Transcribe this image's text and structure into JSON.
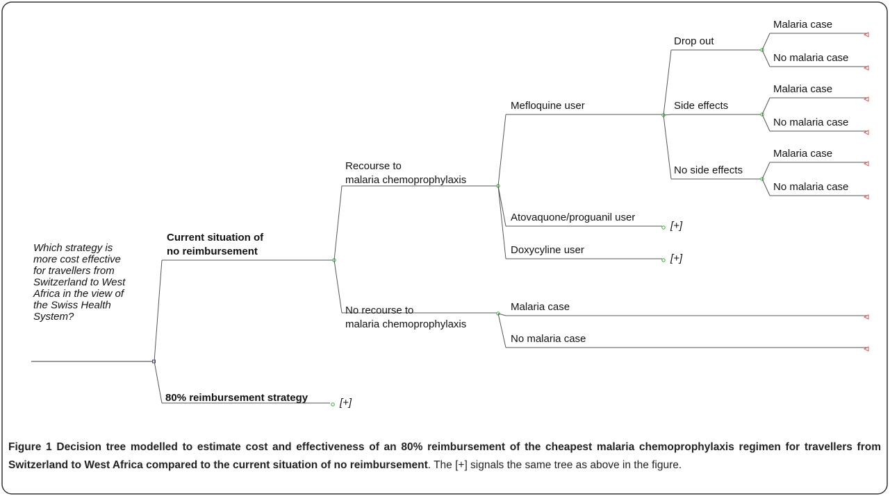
{
  "question": [
    "Which strategy is",
    "more cost effective",
    "for travellers from",
    "Switzerland to West",
    "Africa in the view of",
    "the Swiss Health",
    "System?"
  ],
  "current": [
    "Current situation of",
    "no reimbursement"
  ],
  "reimbursement": {
    "label": "80% reimbursement strategy",
    "collapsed": "[+]"
  },
  "recourse": [
    "Recourse to",
    "malaria chemoprophylaxis"
  ],
  "no_recourse": [
    "No recourse to",
    "malaria chemoprophylaxis"
  ],
  "users": [
    {
      "label": "Mefloquine user"
    },
    {
      "label": "Atovaquone/proguanil user",
      "collapsed": "[+]"
    },
    {
      "label": "Doxycyline user",
      "collapsed": "[+]"
    }
  ],
  "mefloquine_branches": [
    {
      "label": "Drop out",
      "outcomes": [
        "Malaria case",
        "No malaria case"
      ]
    },
    {
      "label": "Side effects",
      "outcomes": [
        "Malaria case",
        "No malaria case"
      ]
    },
    {
      "label": "No side effects",
      "outcomes": [
        "Malaria case",
        "No malaria case"
      ]
    }
  ],
  "no_recourse_outcomes": [
    "Malaria case",
    "No malaria case"
  ],
  "caption": {
    "label": "Figure 1",
    "bold_text": "Decision tree modelled to estimate cost and effectiveness of an 80% reimbursement of the cheapest malaria chemoprophylaxis regimen for travellers from Switzerland to West Africa compared to the current situation of no reimbursement",
    "text": ". The [+] signals the same tree as above in the figure."
  }
}
